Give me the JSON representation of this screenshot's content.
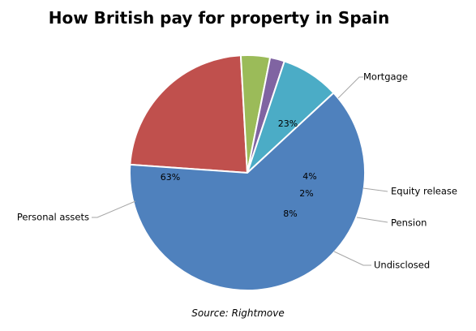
{
  "chart_data": {
    "type": "pie",
    "title": "How British pay for property in Spain",
    "source": "Source: Rightmove",
    "slices": [
      {
        "name": "Mortgage",
        "value": 23,
        "label": "23%",
        "color": "#C0504D"
      },
      {
        "name": "Equity release",
        "value": 4,
        "label": "4%",
        "color": "#9BBB59"
      },
      {
        "name": "Pension",
        "value": 2,
        "label": "2%",
        "color": "#8064A2"
      },
      {
        "name": "Undisclosed",
        "value": 8,
        "label": "8%",
        "color": "#4BACC6"
      },
      {
        "name": "Personal assets",
        "value": 63,
        "label": "63%",
        "color": "#4F81BD"
      }
    ]
  }
}
